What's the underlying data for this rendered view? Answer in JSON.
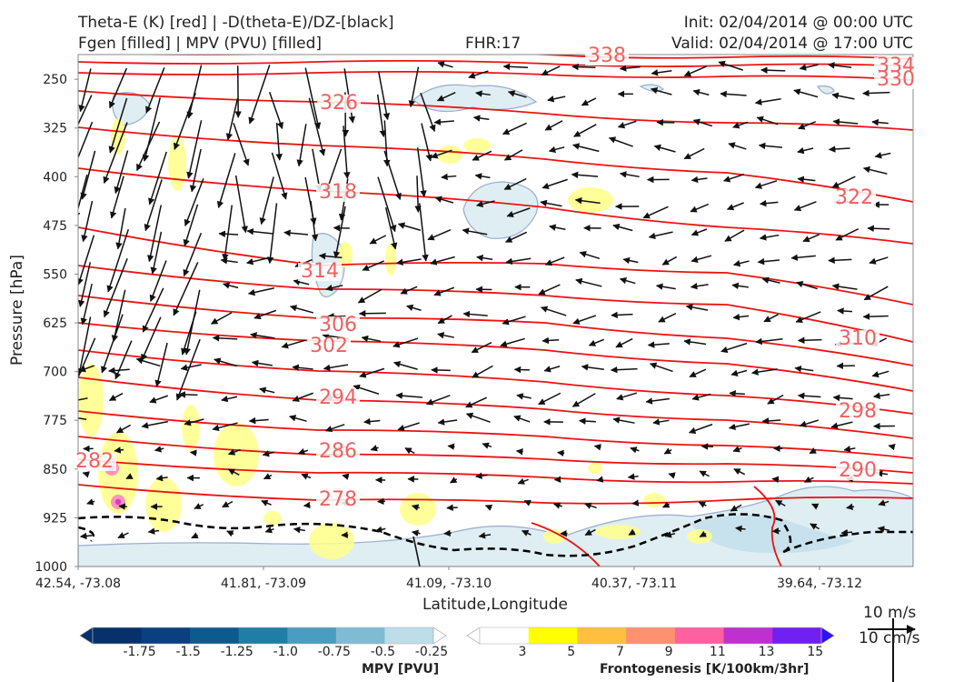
{
  "header": {
    "line1_left": "Theta-E (K) [red] | -D(theta-E)/DZ-[black]",
    "line2_left": "Fgen [filled] | MPV (PVU) [filled]",
    "fhr": "FHR:17",
    "init": "Init: 02/04/2014 @ 00:00 UTC",
    "valid": "Valid: 02/04/2014 @ 17:00 UTC"
  },
  "chart_data": {
    "type": "cross-section",
    "xlabel": "Latitude,Longitude",
    "ylabel": "Pressure [hPa]",
    "x_ticks": [
      "42.54, -73.08",
      "41.81, -73.09",
      "41.09, -73.10",
      "40.37, -73.11",
      "39.64, -73.12"
    ],
    "y_ticks": [
      250,
      325,
      400,
      475,
      550,
      625,
      700,
      775,
      850,
      925,
      1000
    ],
    "ylim": [
      1000,
      200
    ],
    "theta_e_contours": [
      {
        "label": "338",
        "level": 338
      },
      {
        "label": "334",
        "level": 334
      },
      {
        "label": "330",
        "level": 330
      },
      {
        "label": "326",
        "level": 326
      },
      {
        "label": "322",
        "level": 322
      },
      {
        "label": "318",
        "level": 318
      },
      {
        "label": "314",
        "level": 314
      },
      {
        "label": "310",
        "level": 310
      },
      {
        "label": "306",
        "level": 306
      },
      {
        "label": "302",
        "level": 302
      },
      {
        "label": "298",
        "level": 298
      },
      {
        "label": "294",
        "level": 294
      },
      {
        "label": "290",
        "level": 290
      },
      {
        "label": "286",
        "level": 286
      },
      {
        "label": "282",
        "level": 282
      },
      {
        "label": "278",
        "level": 278
      }
    ],
    "mpv_colorbar": {
      "label": "MPV [PVU]",
      "ticks": [
        "-1.75",
        "-1.5",
        "-1.25",
        "-1.0",
        "-0.75",
        "-0.5",
        "-0.25"
      ],
      "colors": [
        "#08306b",
        "#0a3f80",
        "#0d5a8f",
        "#1f7ea6",
        "#4a9dc0",
        "#7fbbd2",
        "#bddde8",
        "#ffffff"
      ]
    },
    "fgen_colorbar": {
      "label": "Frontogenesis [K/100km/3hr]",
      "ticks": [
        "3",
        "5",
        "7",
        "9",
        "11",
        "13",
        "15"
      ],
      "colors": [
        "#ffffff",
        "#ffff00",
        "#ffc040",
        "#ff9070",
        "#ff60a0",
        "#c030d0",
        "#7020f0",
        "#3010ff"
      ]
    },
    "vector_reference": [
      "10 m/s",
      "10 cm/s"
    ]
  }
}
